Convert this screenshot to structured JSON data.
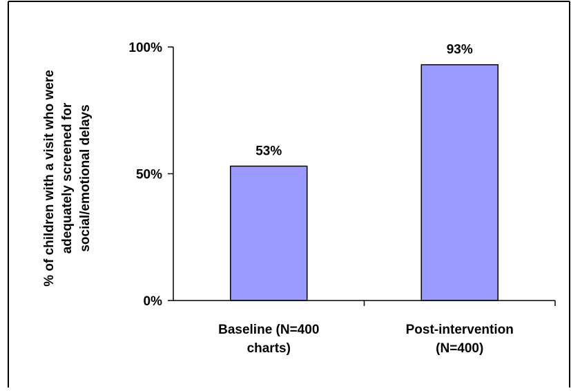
{
  "chart_data": {
    "type": "bar",
    "title": "",
    "xlabel": "",
    "ylabel": [
      "% of children with a visit who were",
      "adequately screened for",
      "social/emotional delays"
    ],
    "categories": [
      [
        "Baseline (N=400",
        "charts)"
      ],
      [
        "Post-intervention",
        "(N=400)"
      ]
    ],
    "values": [
      53,
      93
    ],
    "data_labels": [
      "53%",
      "93%"
    ],
    "ylim": [
      0,
      100
    ],
    "yticks": [
      0,
      50,
      100
    ],
    "ytick_labels": [
      "0%",
      "50%",
      "100%"
    ],
    "grid": false,
    "legend": "none",
    "colors": {
      "bar_fill": "#9999ff",
      "bar_stroke": "#000000",
      "axis": "#000000",
      "frame": "#000000",
      "background": "#ffffff"
    }
  }
}
